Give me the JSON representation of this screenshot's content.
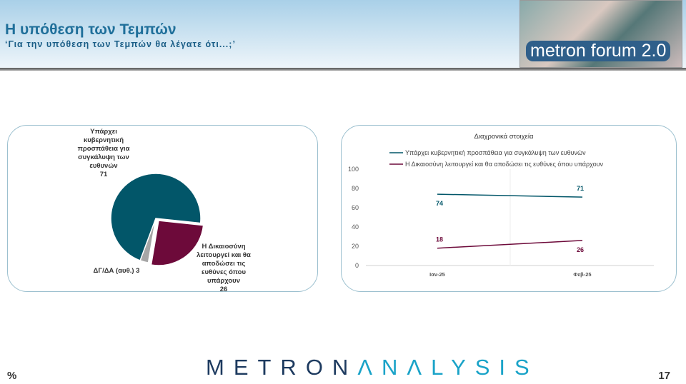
{
  "header": {
    "title": "Η υπόθεση των Τεμπών",
    "subtitle": "‘Για την υπόθεση  των Τεμπών θα λέγατε ότι...;’",
    "logo": "metron forum 2.0"
  },
  "footer": {
    "brand_a": "METRON",
    "brand_b": "ΛNΛLYSIS",
    "unit": "%",
    "page": "17"
  },
  "colors": {
    "teal": "#025669",
    "maroon": "#6d0a3a",
    "gray": "#a6a6a6"
  },
  "chart_data": [
    {
      "type": "pie",
      "slices": [
        {
          "label": "Υπάρχει κυβερνητική προσπάθεια για συγκάλυψη των ευθυνών",
          "value": 71,
          "color": "#025669"
        },
        {
          "label": "Η Δικαιοσύνη λειτουργεί και θα αποδώσει τις ευθύνες όπου υπάρχουν",
          "value": 26,
          "color": "#6d0a3a"
        },
        {
          "label": "ΔΓ/ΔΑ (αυθ.)",
          "value": 3,
          "color": "#a6a6a6"
        }
      ]
    },
    {
      "type": "line",
      "title": "Διαχρονικά στοιχεία",
      "categories": [
        "Ιαν-25",
        "Φεβ-25"
      ],
      "ylim": [
        0,
        100
      ],
      "yticks": [
        "0",
        "20",
        "40",
        "60",
        "80",
        "100"
      ],
      "legend": "top",
      "series": [
        {
          "name": "Υπάρχει κυβερνητική προσπάθεια για συγκάλυψη των ευθυνών",
          "values": [
            74,
            71
          ],
          "color": "#025669"
        },
        {
          "name": "Η Δικαιοσύνη λειτουργεί και θα αποδώσει τις ευθύνες όπου υπάρχουν",
          "values": [
            18,
            26
          ],
          "color": "#6d0a3a"
        }
      ]
    }
  ]
}
